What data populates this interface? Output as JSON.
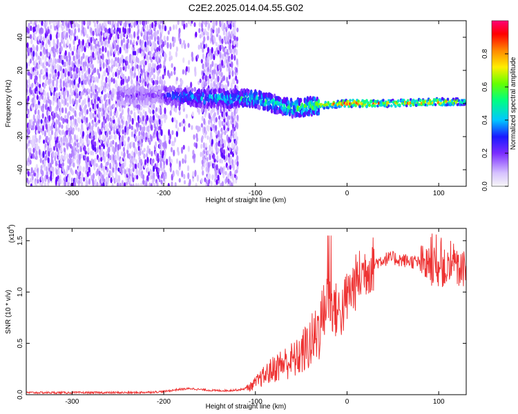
{
  "title": "C2E2.2025.014.04.55.G02",
  "colors": {
    "snr_line": "#ee3333",
    "axis": "#000000",
    "colormap": [
      "#f7f7f7",
      "#dcc7ff",
      "#a56bff",
      "#6a00ff",
      "#2233ff",
      "#00c8ff",
      "#00ff99",
      "#66ff00",
      "#ffee00",
      "#ff8800",
      "#ff0000",
      "#ff0077"
    ]
  },
  "chart_data": [
    {
      "type": "heatmap",
      "title": "C2E2.2025.014.04.55.G02",
      "xlabel": "Height of straight line (km)",
      "ylabel": "Frequency (Hz)",
      "xlim": [
        -350,
        130
      ],
      "ylim": [
        -50,
        50
      ],
      "xticks": [
        "-300",
        "-200",
        "-100",
        "0",
        "100"
      ],
      "xtick_values": [
        -300,
        -200,
        -100,
        0,
        100
      ],
      "yticks": [
        "-40",
        "-20",
        "0",
        "20",
        "40"
      ],
      "ytick_values": [
        -40,
        -20,
        0,
        20,
        40
      ],
      "colorbar": {
        "label": "Normalized spectral amplitude",
        "range": [
          0.0,
          1.0
        ],
        "ticks": [
          "0.0",
          "0.2",
          "0.4",
          "0.6",
          "0.8"
        ],
        "tick_values": [
          0.0,
          0.2,
          0.4,
          0.6,
          0.8
        ]
      },
      "features": {
        "broadband_noise_region_km": [
          -350,
          -120
        ],
        "signal_ridge": [
          {
            "x": -200,
            "f": 5,
            "amp": 0.35
          },
          {
            "x": -150,
            "f": 3,
            "amp": 0.45
          },
          {
            "x": -100,
            "f": 3,
            "amp": 0.5
          },
          {
            "x": -60,
            "f": -3,
            "amp": 0.55
          },
          {
            "x": -30,
            "f": -1,
            "amp": 0.65
          },
          {
            "x": 0,
            "f": 0,
            "amp": 0.9
          },
          {
            "x": 50,
            "f": 0,
            "amp": 0.75
          },
          {
            "x": 100,
            "f": 1,
            "amp": 0.8
          },
          {
            "x": 130,
            "f": 1,
            "amp": 0.6
          }
        ]
      }
    },
    {
      "type": "line",
      "xlabel": "Height of straight line (km)",
      "ylabel": "SNR (10 * v/v)",
      "y_multiplier": "(x10",
      "y_multiplier_exp": "4",
      "xlim": [
        -350,
        130
      ],
      "ylim": [
        0,
        1.62
      ],
      "xticks": [
        "-300",
        "-200",
        "-100",
        "0",
        "100"
      ],
      "xtick_values": [
        -300,
        -200,
        -100,
        0,
        100
      ],
      "yticks": [
        "0.0",
        "0.5",
        "1.0",
        "1.5"
      ],
      "ytick_values": [
        0.0,
        0.5,
        1.0,
        1.5
      ],
      "series": [
        {
          "x": [
            -350,
            -320,
            -290,
            -260,
            -230,
            -200,
            -185,
            -170,
            -160,
            -145,
            -130,
            -115,
            -105,
            -95,
            -85,
            -75,
            -65,
            -55,
            -45,
            -35,
            -28,
            -20,
            -15,
            -10,
            -5,
            0,
            10,
            20,
            30,
            40,
            50,
            60,
            70,
            80,
            90,
            100,
            110,
            120,
            130
          ],
          "values": [
            0.02,
            0.02,
            0.02,
            0.02,
            0.02,
            0.03,
            0.05,
            0.06,
            0.05,
            0.04,
            0.04,
            0.05,
            0.08,
            0.15,
            0.22,
            0.28,
            0.32,
            0.35,
            0.45,
            0.55,
            0.75,
            0.95,
            0.85,
            0.8,
            0.82,
            0.95,
            1.1,
            1.22,
            1.28,
            1.32,
            1.33,
            1.31,
            1.3,
            1.28,
            1.25,
            1.24,
            1.22,
            1.22,
            1.22
          ]
        }
      ]
    }
  ]
}
